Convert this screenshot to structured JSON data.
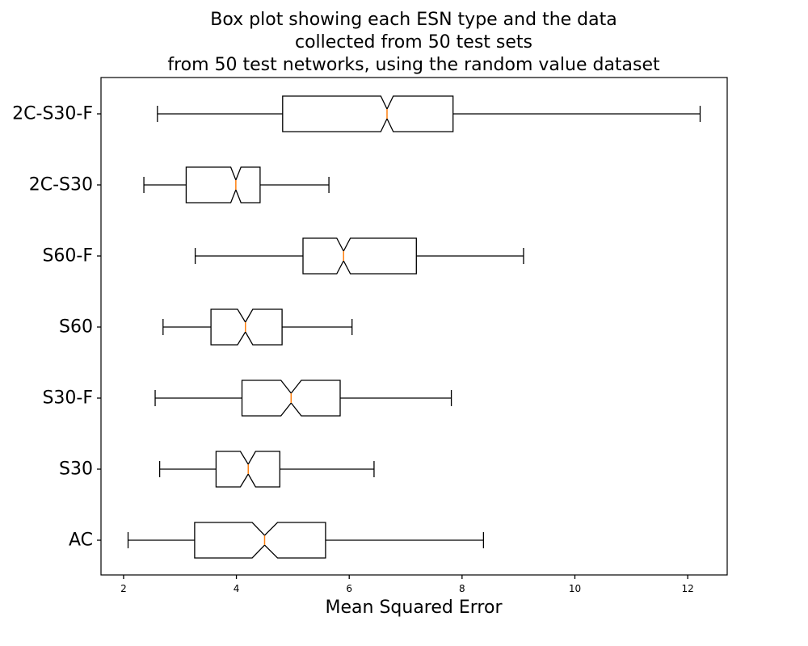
{
  "chart_data": {
    "type": "boxplot",
    "orientation": "horizontal",
    "notched": true,
    "title_lines": [
      "Box plot showing each ESN type and the data",
      "collected from 50 test sets",
      "from 50 test networks, using the random value dataset"
    ],
    "xlabel": "Mean Squared Error",
    "ylabel": "",
    "xlim": [
      1.6,
      12.7
    ],
    "xticks": [
      2,
      4,
      6,
      8,
      10,
      12
    ],
    "xtick_labels": [
      "2",
      "4",
      "6",
      "8",
      "10",
      "12"
    ],
    "categories": [
      "AC",
      "S30",
      "S30-F",
      "S60",
      "S60-F",
      "2C-S30",
      "2C-S30-F"
    ],
    "boxes": [
      {
        "label": "AC",
        "whislo": 2.08,
        "q1": 3.26,
        "med": 4.5,
        "q3": 5.58,
        "whishi": 8.38,
        "notch_lo": 4.28,
        "notch_hi": 4.73
      },
      {
        "label": "S30",
        "whislo": 2.64,
        "q1": 3.64,
        "med": 4.21,
        "q3": 4.77,
        "whishi": 6.44,
        "notch_lo": 4.07,
        "notch_hi": 4.34
      },
      {
        "label": "S30-F",
        "whislo": 2.56,
        "q1": 4.1,
        "med": 4.97,
        "q3": 5.84,
        "whishi": 7.81,
        "notch_lo": 4.79,
        "notch_hi": 5.15
      },
      {
        "label": "S60",
        "whislo": 2.7,
        "q1": 3.55,
        "med": 4.16,
        "q3": 4.81,
        "whishi": 6.05,
        "notch_lo": 4.02,
        "notch_hi": 4.29
      },
      {
        "label": "S60-F",
        "whislo": 3.27,
        "q1": 5.18,
        "med": 5.9,
        "q3": 7.19,
        "whishi": 9.09,
        "notch_lo": 5.78,
        "notch_hi": 6.02
      },
      {
        "label": "2C-S30",
        "whislo": 2.36,
        "q1": 3.11,
        "med": 3.99,
        "q3": 4.42,
        "whishi": 5.64,
        "notch_lo": 3.9,
        "notch_hi": 4.08
      },
      {
        "label": "2C-S30-F",
        "whislo": 2.6,
        "q1": 4.82,
        "med": 6.67,
        "q3": 7.84,
        "whishi": 12.22,
        "notch_lo": 6.56,
        "notch_hi": 6.78
      }
    ],
    "grid": false,
    "colors": {
      "box": "#000000",
      "median": "#ff7f0e",
      "background": "#ffffff"
    }
  }
}
